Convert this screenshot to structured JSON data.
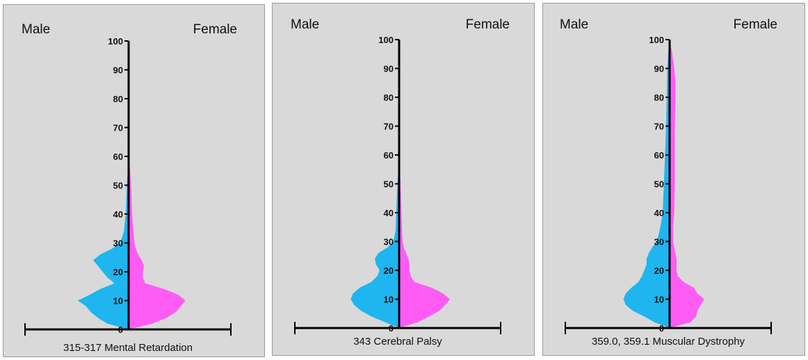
{
  "chart_data": [
    {
      "type": "population-pyramid",
      "title": "315-317  Mental Retardation",
      "left_label": "Male",
      "right_label": "Female",
      "yticks": [
        0,
        10,
        20,
        30,
        40,
        50,
        60,
        70,
        80,
        90,
        100
      ],
      "ylim": [
        0,
        100
      ],
      "colors": {
        "male": "#1fb5ef",
        "female": "#ff5cf3"
      },
      "male": [
        [
          0,
          0
        ],
        [
          2,
          0.18
        ],
        [
          4,
          0.26
        ],
        [
          6,
          0.32
        ],
        [
          8,
          0.36
        ],
        [
          10,
          0.43
        ],
        [
          12,
          0.33
        ],
        [
          14,
          0.24
        ],
        [
          16,
          0.12
        ],
        [
          18,
          0.18
        ],
        [
          20,
          0.22
        ],
        [
          22,
          0.26
        ],
        [
          24,
          0.3
        ],
        [
          26,
          0.24
        ],
        [
          28,
          0.14
        ],
        [
          30,
          0.07
        ],
        [
          34,
          0.04
        ],
        [
          40,
          0.025
        ],
        [
          50,
          0.015
        ],
        [
          57,
          0.004
        ],
        [
          60,
          0
        ]
      ],
      "female": [
        [
          0,
          0
        ],
        [
          2,
          0.2
        ],
        [
          4,
          0.32
        ],
        [
          6,
          0.4
        ],
        [
          8,
          0.44
        ],
        [
          10,
          0.48
        ],
        [
          12,
          0.42
        ],
        [
          14,
          0.3
        ],
        [
          16,
          0.14
        ],
        [
          18,
          0.12
        ],
        [
          20,
          0.12
        ],
        [
          22,
          0.13
        ],
        [
          24,
          0.11
        ],
        [
          26,
          0.08
        ],
        [
          28,
          0.06
        ],
        [
          30,
          0.05
        ],
        [
          34,
          0.04
        ],
        [
          40,
          0.03
        ],
        [
          50,
          0.02
        ],
        [
          57,
          0.01
        ],
        [
          60,
          0
        ]
      ]
    },
    {
      "type": "population-pyramid",
      "title": "343 Cerebral Palsy",
      "left_label": "Male",
      "right_label": "Female",
      "yticks": [
        0,
        10,
        20,
        30,
        40,
        50,
        60,
        70,
        80,
        90,
        100
      ],
      "ylim": [
        0,
        100
      ],
      "colors": {
        "male": "#1fb5ef",
        "female": "#ff5cf3"
      },
      "male": [
        [
          0,
          0
        ],
        [
          2,
          0.12
        ],
        [
          4,
          0.24
        ],
        [
          6,
          0.33
        ],
        [
          8,
          0.39
        ],
        [
          10,
          0.42
        ],
        [
          12,
          0.4
        ],
        [
          14,
          0.34
        ],
        [
          16,
          0.24
        ],
        [
          18,
          0.19
        ],
        [
          20,
          0.17
        ],
        [
          22,
          0.2
        ],
        [
          24,
          0.21
        ],
        [
          26,
          0.18
        ],
        [
          28,
          0.1
        ],
        [
          30,
          0.05
        ],
        [
          34,
          0.03
        ],
        [
          40,
          0.025
        ],
        [
          50,
          0.015
        ],
        [
          57,
          0.004
        ],
        [
          60,
          0
        ]
      ],
      "female": [
        [
          0,
          0
        ],
        [
          2,
          0.16
        ],
        [
          4,
          0.26
        ],
        [
          6,
          0.35
        ],
        [
          8,
          0.4
        ],
        [
          10,
          0.44
        ],
        [
          12,
          0.38
        ],
        [
          14,
          0.28
        ],
        [
          16,
          0.13
        ],
        [
          18,
          0.1
        ],
        [
          20,
          0.09
        ],
        [
          22,
          0.09
        ],
        [
          24,
          0.08
        ],
        [
          26,
          0.06
        ],
        [
          28,
          0.04
        ],
        [
          30,
          0.03
        ],
        [
          34,
          0.025
        ],
        [
          40,
          0.02
        ],
        [
          50,
          0.012
        ],
        [
          57,
          0.004
        ],
        [
          60,
          0
        ]
      ]
    },
    {
      "type": "population-pyramid",
      "title": "359.0, 359.1 Muscular Dystrophy",
      "left_label": "Male",
      "right_label": "Female",
      "yticks": [
        0,
        10,
        20,
        30,
        40,
        50,
        60,
        70,
        80,
        90,
        100
      ],
      "ylim": [
        0,
        100
      ],
      "colors": {
        "male": "#1fb5ef",
        "female": "#ff5cf3"
      },
      "male": [
        [
          0,
          0
        ],
        [
          2,
          0.13
        ],
        [
          4,
          0.22
        ],
        [
          6,
          0.32
        ],
        [
          8,
          0.38
        ],
        [
          10,
          0.4
        ],
        [
          12,
          0.38
        ],
        [
          14,
          0.33
        ],
        [
          16,
          0.27
        ],
        [
          18,
          0.24
        ],
        [
          20,
          0.22
        ],
        [
          22,
          0.2
        ],
        [
          24,
          0.2
        ],
        [
          26,
          0.18
        ],
        [
          28,
          0.15
        ],
        [
          30,
          0.11
        ],
        [
          35,
          0.08
        ],
        [
          40,
          0.06
        ],
        [
          50,
          0.05
        ],
        [
          60,
          0.04
        ],
        [
          70,
          0.03
        ],
        [
          80,
          0.025
        ],
        [
          90,
          0.02
        ],
        [
          96,
          0.01
        ],
        [
          100,
          0
        ]
      ],
      "female": [
        [
          0,
          0
        ],
        [
          2,
          0.18
        ],
        [
          4,
          0.23
        ],
        [
          6,
          0.24
        ],
        [
          8,
          0.27
        ],
        [
          10,
          0.3
        ],
        [
          12,
          0.24
        ],
        [
          14,
          0.21
        ],
        [
          16,
          0.12
        ],
        [
          18,
          0.07
        ],
        [
          20,
          0.06
        ],
        [
          22,
          0.06
        ],
        [
          24,
          0.06
        ],
        [
          26,
          0.05
        ],
        [
          28,
          0.04
        ],
        [
          30,
          0.03
        ],
        [
          35,
          0.03
        ],
        [
          40,
          0.04
        ],
        [
          50,
          0.045
        ],
        [
          60,
          0.045
        ],
        [
          70,
          0.045
        ],
        [
          80,
          0.05
        ],
        [
          86,
          0.05
        ],
        [
          90,
          0.04
        ],
        [
          96,
          0.02
        ],
        [
          100,
          0
        ]
      ]
    }
  ]
}
